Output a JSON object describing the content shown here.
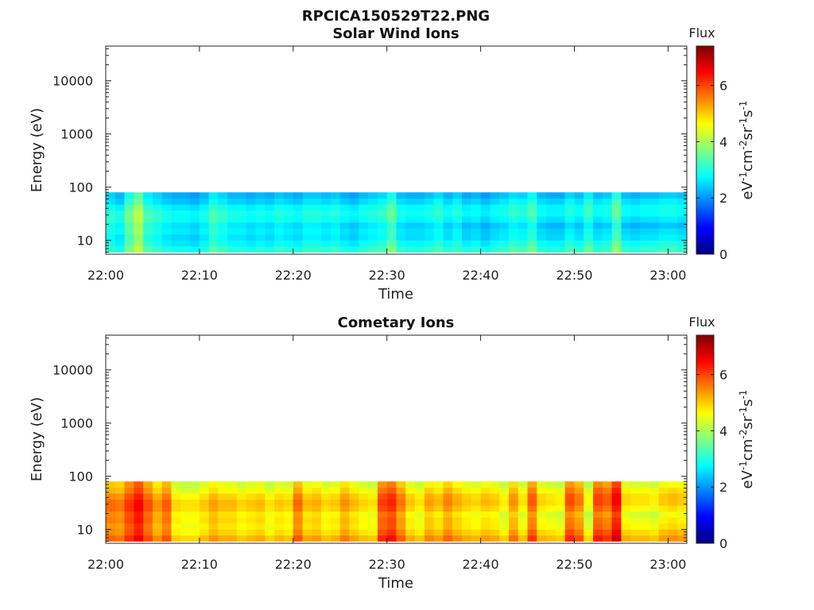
{
  "figure": {
    "title": "RPCICA150529T22.PNG"
  },
  "chart_data": [
    {
      "type": "heatmap",
      "title": "Solar Wind Ions",
      "xlabel": "Time",
      "ylabel": "Energy (eV)",
      "x_ticks": [
        "22:00",
        "22:10",
        "22:20",
        "22:30",
        "22:40",
        "22:50",
        "23:00"
      ],
      "y_scale": "log",
      "y_ticks": [
        "10",
        "100",
        "1000",
        "10000"
      ],
      "ylim": [
        5.5,
        45000
      ],
      "energy_range_filled": [
        6,
        80
      ],
      "colorbar": {
        "label": "Flux",
        "unit": "eV-1cm-2sr-1s-1",
        "ticks": [
          "0",
          "2",
          "4",
          "6"
        ],
        "range": [
          0,
          7.4
        ],
        "colormap": "jet"
      },
      "x_range_minutes": [
        0,
        62
      ],
      "log_flux_profile": [
        2.9,
        2.7,
        3.4,
        3.9,
        3.1,
        2.9,
        2.7,
        2.6,
        2.6,
        2.5,
        2.7,
        3.1,
        2.9,
        2.7,
        2.7,
        2.6,
        2.7,
        2.6,
        2.8,
        2.7,
        2.6,
        2.8,
        2.8,
        2.7,
        2.8,
        2.6,
        2.5,
        2.7,
        2.8,
        2.9,
        3.3,
        2.7,
        2.6,
        2.6,
        2.7,
        2.9,
        2.6,
        2.8,
        2.5,
        2.6,
        2.4,
        2.6,
        2.7,
        2.9,
        2.8,
        3.1,
        2.6,
        2.5,
        2.5,
        2.8,
        2.6,
        3.0,
        2.6,
        2.7,
        3.3,
        2.6,
        2.5,
        2.6,
        2.6,
        2.7,
        2.7,
        2.6
      ]
    },
    {
      "type": "heatmap",
      "title": "Cometary Ions",
      "xlabel": "Time",
      "ylabel": "Energy (eV)",
      "x_ticks": [
        "22:00",
        "22:10",
        "22:20",
        "22:30",
        "22:40",
        "22:50",
        "23:00"
      ],
      "y_scale": "log",
      "y_ticks": [
        "10",
        "100",
        "1000",
        "10000"
      ],
      "ylim": [
        5.5,
        45000
      ],
      "energy_range_filled": [
        6,
        80
      ],
      "colorbar": {
        "label": "Flux",
        "unit": "eV-1cm-2sr-1s-1",
        "ticks": [
          "0",
          "2",
          "4",
          "6"
        ],
        "range": [
          0,
          7.4
        ],
        "colormap": "jet"
      },
      "x_range_minutes": [
        0,
        62
      ],
      "log_flux_profile": [
        5.5,
        5.4,
        5.9,
        6.3,
        5.7,
        5.2,
        5.6,
        4.7,
        4.6,
        4.6,
        4.8,
        5.1,
        4.9,
        4.9,
        4.7,
        4.8,
        4.9,
        4.6,
        4.8,
        4.7,
        5.5,
        4.9,
        5.0,
        4.7,
        4.8,
        5.2,
        4.9,
        4.7,
        4.6,
        5.8,
        6.0,
        5.4,
        4.8,
        4.6,
        5.1,
        4.9,
        5.3,
        5.0,
        4.8,
        4.7,
        4.9,
        4.8,
        4.5,
        5.2,
        4.6,
        5.6,
        4.7,
        4.6,
        4.5,
        5.7,
        5.4,
        4.4,
        5.8,
        5.6,
        6.3,
        4.7,
        4.6,
        4.6,
        4.5,
        4.8,
        4.9,
        4.8
      ]
    }
  ]
}
